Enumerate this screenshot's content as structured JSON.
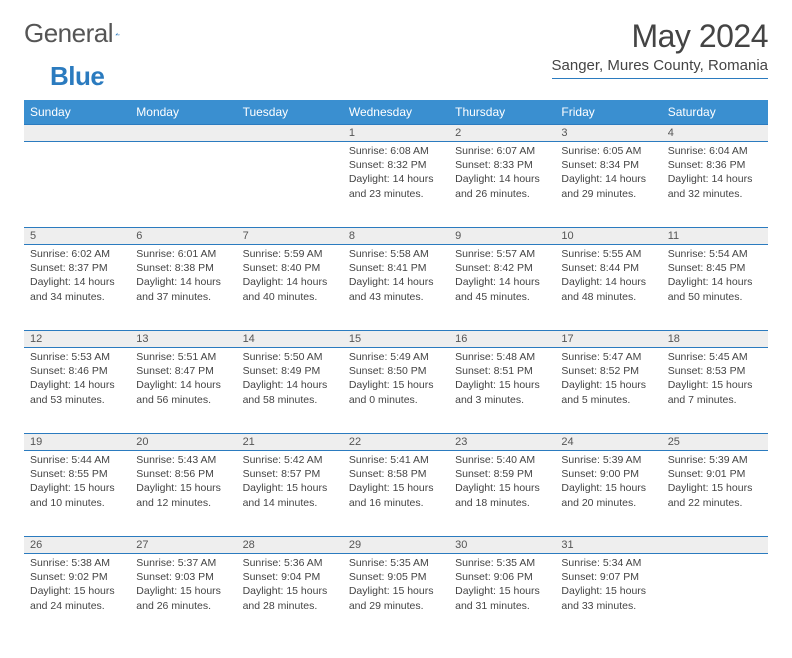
{
  "brand": {
    "name1": "General",
    "name2": "Blue"
  },
  "title": "May 2024",
  "location": "Sanger, Mures County, Romania",
  "colors": {
    "accent": "#3a8fd0",
    "rule": "#2b7bbf",
    "grayRow": "#eeeeee",
    "text": "#444"
  },
  "daysOfWeek": [
    "Sunday",
    "Monday",
    "Tuesday",
    "Wednesday",
    "Thursday",
    "Friday",
    "Saturday"
  ],
  "weeks": [
    [
      null,
      null,
      null,
      {
        "n": "1",
        "sr": "6:08 AM",
        "ss": "8:32 PM",
        "dl": "14 hours and 23 minutes."
      },
      {
        "n": "2",
        "sr": "6:07 AM",
        "ss": "8:33 PM",
        "dl": "14 hours and 26 minutes."
      },
      {
        "n": "3",
        "sr": "6:05 AM",
        "ss": "8:34 PM",
        "dl": "14 hours and 29 minutes."
      },
      {
        "n": "4",
        "sr": "6:04 AM",
        "ss": "8:36 PM",
        "dl": "14 hours and 32 minutes."
      }
    ],
    [
      {
        "n": "5",
        "sr": "6:02 AM",
        "ss": "8:37 PM",
        "dl": "14 hours and 34 minutes."
      },
      {
        "n": "6",
        "sr": "6:01 AM",
        "ss": "8:38 PM",
        "dl": "14 hours and 37 minutes."
      },
      {
        "n": "7",
        "sr": "5:59 AM",
        "ss": "8:40 PM",
        "dl": "14 hours and 40 minutes."
      },
      {
        "n": "8",
        "sr": "5:58 AM",
        "ss": "8:41 PM",
        "dl": "14 hours and 43 minutes."
      },
      {
        "n": "9",
        "sr": "5:57 AM",
        "ss": "8:42 PM",
        "dl": "14 hours and 45 minutes."
      },
      {
        "n": "10",
        "sr": "5:55 AM",
        "ss": "8:44 PM",
        "dl": "14 hours and 48 minutes."
      },
      {
        "n": "11",
        "sr": "5:54 AM",
        "ss": "8:45 PM",
        "dl": "14 hours and 50 minutes."
      }
    ],
    [
      {
        "n": "12",
        "sr": "5:53 AM",
        "ss": "8:46 PM",
        "dl": "14 hours and 53 minutes."
      },
      {
        "n": "13",
        "sr": "5:51 AM",
        "ss": "8:47 PM",
        "dl": "14 hours and 56 minutes."
      },
      {
        "n": "14",
        "sr": "5:50 AM",
        "ss": "8:49 PM",
        "dl": "14 hours and 58 minutes."
      },
      {
        "n": "15",
        "sr": "5:49 AM",
        "ss": "8:50 PM",
        "dl": "15 hours and 0 minutes."
      },
      {
        "n": "16",
        "sr": "5:48 AM",
        "ss": "8:51 PM",
        "dl": "15 hours and 3 minutes."
      },
      {
        "n": "17",
        "sr": "5:47 AM",
        "ss": "8:52 PM",
        "dl": "15 hours and 5 minutes."
      },
      {
        "n": "18",
        "sr": "5:45 AM",
        "ss": "8:53 PM",
        "dl": "15 hours and 7 minutes."
      }
    ],
    [
      {
        "n": "19",
        "sr": "5:44 AM",
        "ss": "8:55 PM",
        "dl": "15 hours and 10 minutes."
      },
      {
        "n": "20",
        "sr": "5:43 AM",
        "ss": "8:56 PM",
        "dl": "15 hours and 12 minutes."
      },
      {
        "n": "21",
        "sr": "5:42 AM",
        "ss": "8:57 PM",
        "dl": "15 hours and 14 minutes."
      },
      {
        "n": "22",
        "sr": "5:41 AM",
        "ss": "8:58 PM",
        "dl": "15 hours and 16 minutes."
      },
      {
        "n": "23",
        "sr": "5:40 AM",
        "ss": "8:59 PM",
        "dl": "15 hours and 18 minutes."
      },
      {
        "n": "24",
        "sr": "5:39 AM",
        "ss": "9:00 PM",
        "dl": "15 hours and 20 minutes."
      },
      {
        "n": "25",
        "sr": "5:39 AM",
        "ss": "9:01 PM",
        "dl": "15 hours and 22 minutes."
      }
    ],
    [
      {
        "n": "26",
        "sr": "5:38 AM",
        "ss": "9:02 PM",
        "dl": "15 hours and 24 minutes."
      },
      {
        "n": "27",
        "sr": "5:37 AM",
        "ss": "9:03 PM",
        "dl": "15 hours and 26 minutes."
      },
      {
        "n": "28",
        "sr": "5:36 AM",
        "ss": "9:04 PM",
        "dl": "15 hours and 28 minutes."
      },
      {
        "n": "29",
        "sr": "5:35 AM",
        "ss": "9:05 PM",
        "dl": "15 hours and 29 minutes."
      },
      {
        "n": "30",
        "sr": "5:35 AM",
        "ss": "9:06 PM",
        "dl": "15 hours and 31 minutes."
      },
      {
        "n": "31",
        "sr": "5:34 AM",
        "ss": "9:07 PM",
        "dl": "15 hours and 33 minutes."
      },
      null
    ]
  ],
  "labels": {
    "sunrise": "Sunrise: ",
    "sunset": "Sunset: ",
    "daylight": "Daylight: "
  }
}
